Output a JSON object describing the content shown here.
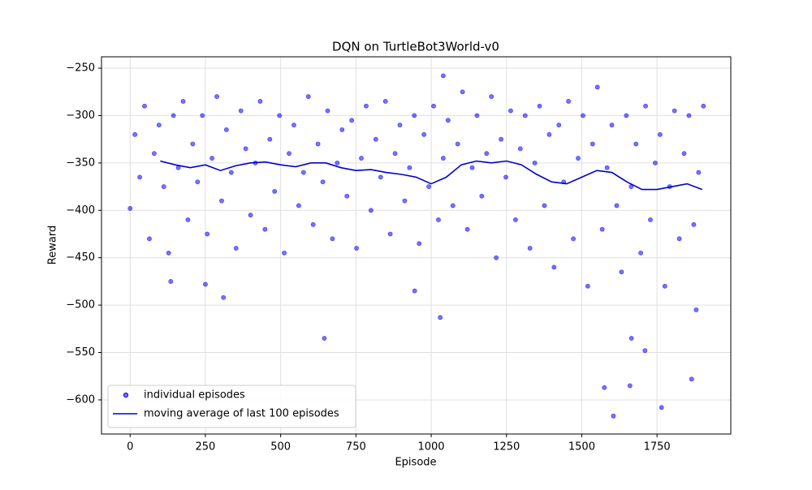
{
  "chart_data": {
    "type": "scatter",
    "title": "DQN on TurtleBot3World-v0",
    "x_label": "Episode",
    "y_label": "Reward",
    "xlim": [
      -95,
      1995
    ],
    "ylim": [
      -636,
      -238
    ],
    "xticks": [
      0,
      250,
      500,
      750,
      1000,
      1250,
      1500,
      1750
    ],
    "yticks": [
      {
        "value": -600,
        "label": "−600"
      },
      {
        "value": -550,
        "label": "−550"
      },
      {
        "value": -500,
        "label": "−500"
      },
      {
        "value": -450,
        "label": "−450"
      },
      {
        "value": -400,
        "label": "−400"
      },
      {
        "value": -350,
        "label": "−350"
      },
      {
        "value": -300,
        "label": "−300"
      },
      {
        "value": -250,
        "label": "−250"
      }
    ],
    "grid": true,
    "legend": "lower left",
    "series": [
      {
        "name": "individual episodes",
        "kind": "scatter",
        "color": "#0000ff",
        "x": [
          0,
          16,
          32,
          48,
          64,
          80,
          96,
          112,
          128,
          144,
          160,
          176,
          192,
          208,
          224,
          240,
          256,
          272,
          288,
          304,
          320,
          336,
          352,
          368,
          384,
          400,
          416,
          432,
          448,
          464,
          480,
          496,
          512,
          528,
          544,
          560,
          576,
          592,
          608,
          624,
          640,
          656,
          672,
          688,
          704,
          720,
          736,
          752,
          768,
          784,
          800,
          816,
          832,
          848,
          864,
          880,
          896,
          912,
          928,
          944,
          960,
          976,
          992,
          1008,
          1024,
          1040,
          1056,
          1072,
          1088,
          1104,
          1120,
          1136,
          1152,
          1168,
          1184,
          1200,
          1216,
          1232,
          1248,
          1264,
          1280,
          1296,
          1312,
          1328,
          1344,
          1360,
          1376,
          1392,
          1408,
          1424,
          1440,
          1456,
          1472,
          1488,
          1504,
          1520,
          1536,
          1552,
          1568,
          1584,
          1600,
          1616,
          1632,
          1648,
          1664,
          1680,
          1696,
          1712,
          1728,
          1744,
          1760,
          1776,
          1792,
          1808,
          1824,
          1840,
          1856,
          1872,
          1888,
          1904,
          645,
          1030,
          310,
          945,
          1040,
          1575,
          1605,
          1660,
          1665,
          1710,
          1765,
          1865,
          1880,
          135,
          250
        ],
        "values": [
          -398,
          -320,
          -365,
          -290,
          -430,
          -340,
          -310,
          -375,
          -445,
          -300,
          -355,
          -285,
          -410,
          -330,
          -370,
          -300,
          -425,
          -345,
          -280,
          -390,
          -315,
          -360,
          -440,
          -295,
          -335,
          -405,
          -350,
          -285,
          -420,
          -325,
          -380,
          -300,
          -445,
          -340,
          -310,
          -395,
          -360,
          -280,
          -415,
          -330,
          -370,
          -295,
          -430,
          -350,
          -315,
          -385,
          -305,
          -440,
          -345,
          -290,
          -400,
          -325,
          -365,
          -285,
          -425,
          -340,
          -310,
          -390,
          -355,
          -300,
          -435,
          -320,
          -375,
          -290,
          -410,
          -345,
          -305,
          -395,
          -330,
          -275,
          -420,
          -355,
          -300,
          -385,
          -340,
          -280,
          -450,
          -325,
          -365,
          -295,
          -410,
          -335,
          -300,
          -440,
          -350,
          -290,
          -395,
          -320,
          -460,
          -310,
          -370,
          -285,
          -430,
          -345,
          -300,
          -480,
          -330,
          -270,
          -420,
          -355,
          -310,
          -395,
          -465,
          -300,
          -375,
          -330,
          -445,
          -290,
          -410,
          -350,
          -320,
          -480,
          -375,
          -295,
          -430,
          -340,
          -300,
          -415,
          -360,
          -290,
          -535,
          -513,
          -492,
          -485,
          -258,
          -587,
          -617,
          -585,
          -535,
          -548,
          -608,
          -578,
          -505,
          -475,
          -478
        ]
      },
      {
        "name": "moving average of last 100 episodes",
        "kind": "line",
        "color": "#0000cd",
        "x": [
          100,
          150,
          200,
          250,
          300,
          350,
          400,
          450,
          500,
          550,
          600,
          650,
          700,
          750,
          800,
          850,
          900,
          950,
          1000,
          1050,
          1100,
          1150,
          1200,
          1250,
          1300,
          1350,
          1400,
          1450,
          1500,
          1550,
          1600,
          1650,
          1700,
          1750,
          1800,
          1850,
          1900
        ],
        "values": [
          -348,
          -352,
          -355,
          -352,
          -358,
          -353,
          -350,
          -349,
          -352,
          -354,
          -350,
          -350,
          -355,
          -358,
          -357,
          -360,
          -362,
          -365,
          -372,
          -365,
          -352,
          -348,
          -350,
          -348,
          -352,
          -362,
          -370,
          -372,
          -365,
          -358,
          -360,
          -370,
          -378,
          -378,
          -375,
          -372,
          -378
        ]
      }
    ]
  }
}
